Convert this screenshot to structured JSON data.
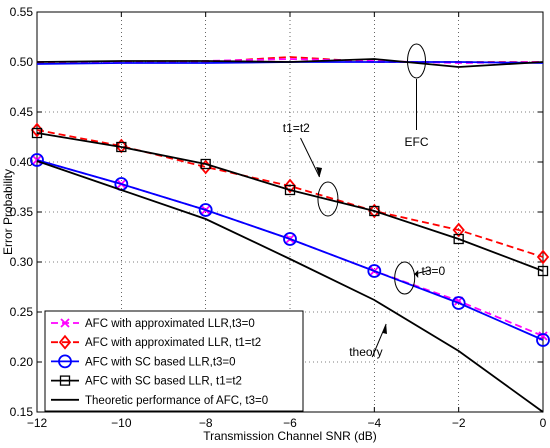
{
  "chart_data": {
    "type": "line",
    "title": "",
    "xlabel": "Transmission Channel SNR (dB)",
    "ylabel": "Error Probability",
    "xlim": [
      -12,
      0
    ],
    "ylim": [
      0.15,
      0.55
    ],
    "xticks": [
      -12,
      -10,
      -8,
      -6,
      -4,
      -2,
      0
    ],
    "yticks": [
      0.15,
      0.2,
      0.25,
      0.3,
      0.35,
      0.4,
      0.45,
      0.5,
      0.55
    ],
    "x": [
      -12,
      -10,
      -8,
      -6,
      -4,
      -2,
      0
    ],
    "grid": "on",
    "legend_position": "bottom-left",
    "series": [
      {
        "name": "AFC with approximated LLR,t3=0",
        "color": "#ff00ff",
        "dash": "dashed",
        "marker": "x",
        "values": [
          0.402,
          0.378,
          0.352,
          0.323,
          0.291,
          0.261,
          0.226
        ]
      },
      {
        "name": "AFC with approximated LLR, t1=t2",
        "color": "#ff0000",
        "dash": "dashed",
        "marker": "diamond",
        "values": [
          0.432,
          0.416,
          0.395,
          0.376,
          0.351,
          0.332,
          0.305
        ]
      },
      {
        "name": "AFC with SC based LLR,t3=0",
        "color": "#0000ff",
        "dash": "solid",
        "marker": "circle",
        "values": [
          0.402,
          0.378,
          0.352,
          0.323,
          0.291,
          0.259,
          0.222
        ]
      },
      {
        "name": "AFC with SC based LLR, t1=t2",
        "color": "#000000",
        "dash": "solid",
        "marker": "square",
        "values": [
          0.429,
          0.415,
          0.398,
          0.372,
          0.351,
          0.323,
          0.291
        ]
      },
      {
        "name": "Theoretic performance of AFC, t3=0",
        "color": "#000000",
        "dash": "solid",
        "marker": "none",
        "values": [
          0.401,
          0.372,
          0.343,
          0.303,
          0.262,
          0.211,
          0.15
        ]
      }
    ],
    "efc_series": [
      {
        "color": "#ff0000",
        "dash": "dashed",
        "values": [
          0.499,
          0.5,
          0.5,
          0.505,
          0.5,
          0.5,
          0.5
        ]
      },
      {
        "color": "#ff00ff",
        "dash": "dashed",
        "values": [
          0.5,
          0.5,
          0.501,
          0.503,
          0.501,
          0.499,
          0.5
        ]
      },
      {
        "color": "#0000ff",
        "dash": "solid",
        "values": [
          0.498,
          0.499,
          0.499,
          0.5,
          0.5,
          0.5,
          0.499
        ]
      },
      {
        "color": "#000000",
        "dash": "solid",
        "values": [
          0.5,
          0.501,
          0.501,
          0.5,
          0.503,
          0.495,
          0.5
        ]
      }
    ],
    "annotations": [
      {
        "text": "EFC",
        "x": -3.0,
        "y": 0.42
      },
      {
        "text": "t1=t2",
        "x": -5.85,
        "y": 0.434
      },
      {
        "text": "t3=0",
        "x": -2.6,
        "y": 0.291
      },
      {
        "text": "theory",
        "x": -4.2,
        "y": 0.21
      }
    ]
  }
}
